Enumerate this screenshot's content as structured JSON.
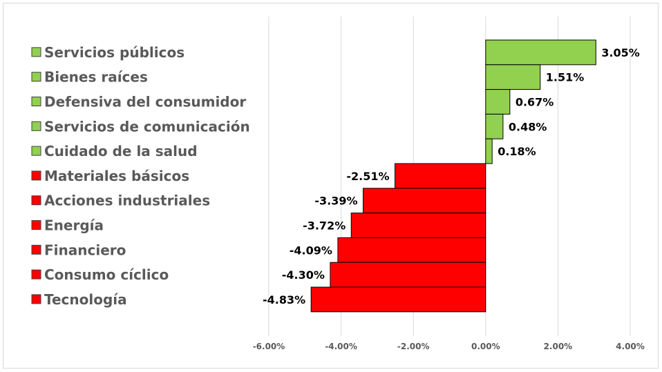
{
  "chart_data": {
    "type": "bar",
    "orientation": "horizontal",
    "categories": [
      "Servicios públicos",
      "Bienes raíces",
      "Defensiva del consumidor",
      "Servicios de comunicación",
      "Cuidado de la salud",
      "Materiales básicos",
      "Acciones industriales",
      "Energía",
      "Financiero",
      "Consumo cíclico",
      "Tecnología"
    ],
    "values": [
      3.05,
      1.51,
      0.67,
      0.48,
      0.18,
      -2.51,
      -3.39,
      -3.72,
      -4.09,
      -4.3,
      -4.83
    ],
    "data_labels": [
      "3.05%",
      "1.51%",
      "0.67%",
      "0.48%",
      "0.18%",
      "-2.51%",
      "-3.39%",
      "-3.72%",
      "-4.09%",
      "-4.30%",
      "-4.83%"
    ],
    "xlim": [
      -6,
      4
    ],
    "x_ticks": [
      -6,
      -4,
      -2,
      0,
      2,
      4
    ],
    "x_tick_labels": [
      "-6.00%",
      "-4.00%",
      "-2.00%",
      "0.00%",
      "2.00%",
      "4.00%"
    ],
    "grid": true,
    "legend_position": "left",
    "colors": {
      "positive": "#92d050",
      "negative": "#ff0000",
      "grid": "#d9d9d9",
      "border": "#000000"
    }
  }
}
